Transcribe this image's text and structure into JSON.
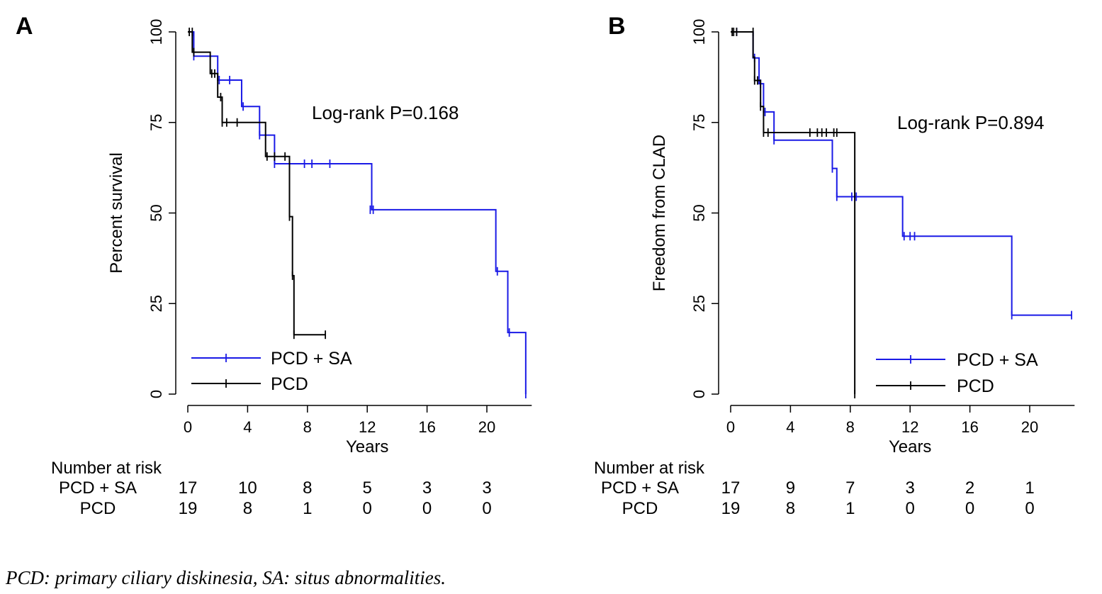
{
  "caption": "PCD: primary ciliary diskinesia, SA: situs abnormalities.",
  "colors": {
    "pcd_sa": "#1a1ae6",
    "pcd": "#000000"
  },
  "chart_data": [
    {
      "type": "line",
      "panel_label": "A",
      "xlabel": "Years",
      "ylabel": "Percent survival",
      "xlim": [
        0,
        23
      ],
      "ylim": [
        0,
        100
      ],
      "xticks": [
        0,
        4,
        8,
        12,
        16,
        20
      ],
      "yticks": [
        0,
        25,
        50,
        75,
        100
      ],
      "grid": false,
      "legend": "bottom-left",
      "annotation": "Log-rank P=0.168",
      "series": [
        {
          "name": "PCD + SA",
          "color": "#1a1ae6",
          "steps": [
            [
              0,
              100
            ],
            [
              0.4,
              93.3
            ],
            [
              2,
              86.7
            ],
            [
              3.6,
              79.4
            ],
            [
              4.8,
              71.5
            ],
            [
              5.8,
              63.6
            ],
            [
              12.3,
              50.9
            ],
            [
              20.6,
              33.9
            ],
            [
              21.4,
              17
            ],
            [
              22.6,
              0
            ]
          ],
          "censored": [
            [
              0.4,
              93.3
            ],
            [
              2.1,
              86.7
            ],
            [
              2.8,
              86.7
            ],
            [
              3.7,
              79.4
            ],
            [
              4.8,
              71.5
            ],
            [
              5.8,
              63.6
            ],
            [
              7.8,
              63.6
            ],
            [
              8.3,
              63.6
            ],
            [
              9.5,
              63.6
            ],
            [
              12.2,
              50.9
            ],
            [
              12.4,
              50.9
            ],
            [
              20.7,
              33.9
            ],
            [
              21.5,
              17
            ],
            [
              22.6,
              0
            ]
          ]
        },
        {
          "name": "PCD",
          "color": "#000000",
          "steps": [
            [
              0,
              100
            ],
            [
              0.3,
              94.4
            ],
            [
              1.5,
              88.5
            ],
            [
              2,
              82
            ],
            [
              2.3,
              75
            ],
            [
              5.2,
              65.6
            ],
            [
              6.8,
              49
            ],
            [
              7,
              32.7
            ],
            [
              7.1,
              16.4
            ],
            [
              9.2,
              16.4
            ]
          ],
          "censored": [
            [
              0.1,
              100
            ],
            [
              0.3,
              100
            ],
            [
              0.4,
              94.4
            ],
            [
              1.6,
              88.5
            ],
            [
              1.8,
              88.5
            ],
            [
              2.2,
              82
            ],
            [
              2.3,
              75
            ],
            [
              2.6,
              75
            ],
            [
              3.3,
              75
            ],
            [
              5.3,
              65.6
            ],
            [
              5.8,
              65.6
            ],
            [
              6.5,
              65.6
            ],
            [
              6.8,
              49
            ],
            [
              7,
              32.7
            ],
            [
              7.1,
              16.4
            ],
            [
              9.2,
              16.4
            ]
          ]
        }
      ],
      "risk_table": {
        "title": "Number at risk",
        "rows": [
          {
            "label": "PCD + SA",
            "values": [
              "17",
              "10",
              "8",
              "5",
              "3",
              "3"
            ]
          },
          {
            "label": "PCD",
            "values": [
              "19",
              "8",
              "1",
              "0",
              "0",
              "0"
            ]
          }
        ]
      }
    },
    {
      "type": "line",
      "panel_label": "B",
      "xlabel": "Years",
      "ylabel": "Freedom from CLAD",
      "xlim": [
        0,
        23
      ],
      "ylim": [
        0,
        100
      ],
      "xticks": [
        0,
        4,
        8,
        12,
        16,
        20
      ],
      "yticks": [
        0,
        25,
        50,
        75,
        100
      ],
      "grid": false,
      "legend": "bottom-right",
      "annotation": "Log-rank P=0.894",
      "series": [
        {
          "name": "PCD + SA",
          "color": "#1a1ae6",
          "steps": [
            [
              0,
              100
            ],
            [
              1.5,
              92.8
            ],
            [
              1.9,
              85.7
            ],
            [
              2.2,
              77.9
            ],
            [
              2.9,
              70.1
            ],
            [
              6.8,
              62.3
            ],
            [
              7.1,
              54.5
            ],
            [
              11.5,
              43.6
            ],
            [
              18.8,
              21.8
            ],
            [
              22.8,
              21.8
            ]
          ],
          "censored": [
            [
              0.4,
              100
            ],
            [
              1.6,
              92.8
            ],
            [
              2,
              85.7
            ],
            [
              2.3,
              77.9
            ],
            [
              2.9,
              70.1
            ],
            [
              6.8,
              62.3
            ],
            [
              7.1,
              54.5
            ],
            [
              8.1,
              54.5
            ],
            [
              8.4,
              54.5
            ],
            [
              11.6,
              43.6
            ],
            [
              12,
              43.6
            ],
            [
              12.3,
              43.6
            ],
            [
              18.8,
              21.8
            ],
            [
              22.8,
              21.8
            ]
          ]
        },
        {
          "name": "PCD",
          "color": "#000000",
          "steps": [
            [
              0,
              100
            ],
            [
              1.5,
              93
            ],
            [
              1.6,
              86.6
            ],
            [
              2,
              79.4
            ],
            [
              2.2,
              72.2
            ],
            [
              8.3,
              0
            ]
          ],
          "censored": [
            [
              0.1,
              100
            ],
            [
              0.2,
              100
            ],
            [
              0.4,
              100
            ],
            [
              1.5,
              100
            ],
            [
              1.6,
              86.6
            ],
            [
              1.8,
              86.6
            ],
            [
              2,
              79.4
            ],
            [
              2.2,
              72.2
            ],
            [
              2.5,
              72.2
            ],
            [
              5.3,
              72.2
            ],
            [
              5.8,
              72.2
            ],
            [
              6.1,
              72.2
            ],
            [
              6.4,
              72.2
            ],
            [
              6.9,
              72.2
            ],
            [
              7.1,
              72.2
            ],
            [
              8.3,
              0
            ]
          ]
        }
      ],
      "risk_table": {
        "title": "Number at risk",
        "rows": [
          {
            "label": "PCD + SA",
            "values": [
              "17",
              "9",
              "7",
              "3",
              "2",
              "1"
            ]
          },
          {
            "label": "PCD",
            "values": [
              "19",
              "8",
              "1",
              "0",
              "0",
              "0"
            ]
          }
        ]
      }
    }
  ]
}
